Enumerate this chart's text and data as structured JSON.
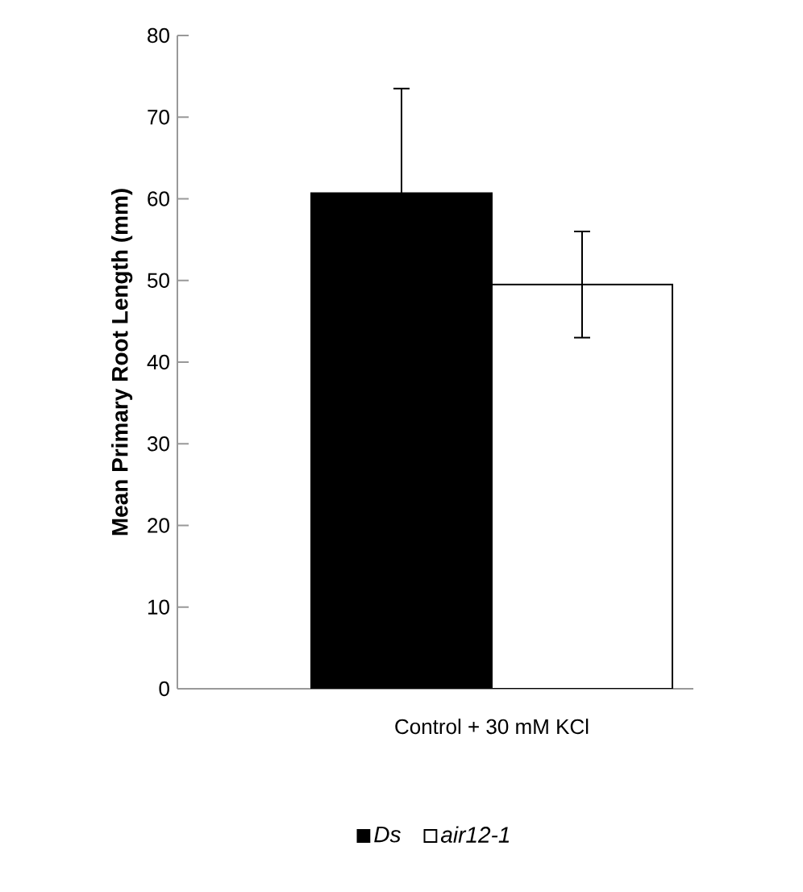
{
  "chart_data": {
    "type": "bar",
    "categories": [
      "Control + 30 mM KCl"
    ],
    "ylabel": "Mean Primary Root Length (mm)",
    "ylim": [
      0,
      80
    ],
    "yticks": [
      0,
      10,
      20,
      30,
      40,
      50,
      60,
      70,
      80
    ],
    "legend": "bottom",
    "grid": false,
    "series": [
      {
        "name": "Ds",
        "color": "#000000",
        "values": [
          60.7
        ],
        "errors": [
          12.8
        ]
      },
      {
        "name": "air12-1",
        "color": "#ffffff",
        "values": [
          49.5
        ],
        "errors": [
          6.5
        ]
      }
    ]
  }
}
